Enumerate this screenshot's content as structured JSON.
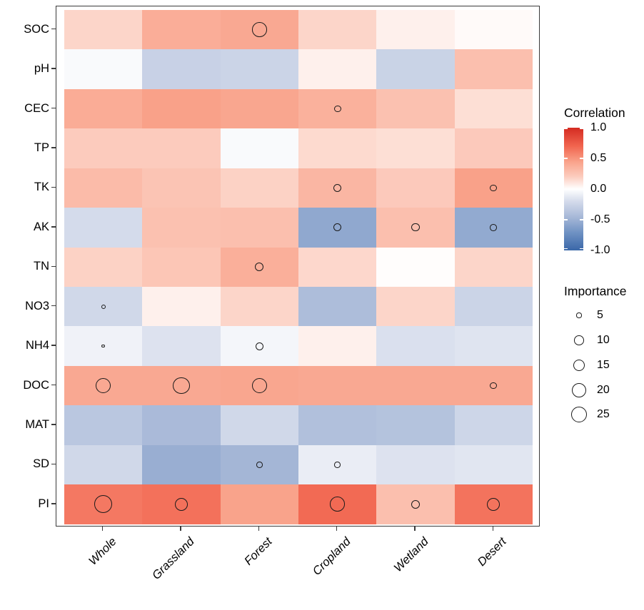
{
  "chart_data": {
    "type": "heatmap",
    "title": "",
    "rows": [
      "SOC",
      "pH",
      "CEC",
      "TP",
      "TK",
      "AK",
      "TN",
      "NO3",
      "NH4",
      "DOC",
      "MAT",
      "SD",
      "PI"
    ],
    "columns": [
      "Whole",
      "Grassland",
      "Forest",
      "Cropland",
      "Wetland",
      "Desert"
    ],
    "correlation": [
      [
        0.17,
        0.38,
        0.41,
        0.17,
        0.06,
        0.02
      ],
      [
        -0.03,
        -0.27,
        -0.25,
        0.06,
        -0.26,
        0.28
      ],
      [
        0.39,
        0.45,
        0.42,
        0.36,
        0.27,
        0.13
      ],
      [
        0.21,
        0.21,
        -0.03,
        0.15,
        0.13,
        0.22
      ],
      [
        0.3,
        0.25,
        0.18,
        0.33,
        0.22,
        0.45
      ],
      [
        -0.2,
        0.27,
        0.28,
        -0.56,
        0.28,
        -0.55
      ],
      [
        0.18,
        0.24,
        0.37,
        0.16,
        0.01,
        0.17
      ],
      [
        -0.22,
        0.06,
        0.17,
        -0.42,
        0.17,
        -0.25
      ],
      [
        -0.07,
        -0.16,
        -0.05,
        0.06,
        -0.17,
        -0.15
      ],
      [
        0.41,
        0.41,
        0.42,
        0.41,
        0.41,
        0.41
      ],
      [
        -0.35,
        -0.44,
        -0.22,
        -0.4,
        -0.38,
        -0.24
      ],
      [
        -0.22,
        -0.52,
        -0.47,
        -0.1,
        -0.16,
        -0.14
      ],
      [
        0.62,
        0.65,
        0.44,
        0.68,
        0.28,
        0.64
      ]
    ],
    "importance": [
      [
        null,
        null,
        20,
        null,
        null,
        null
      ],
      [
        null,
        null,
        null,
        null,
        null,
        null
      ],
      [
        null,
        null,
        null,
        7,
        null,
        null
      ],
      [
        null,
        null,
        null,
        null,
        null,
        null
      ],
      [
        null,
        null,
        null,
        8,
        null,
        7
      ],
      [
        null,
        null,
        null,
        8,
        8,
        7
      ],
      [
        null,
        null,
        9,
        null,
        null,
        null
      ],
      [
        4,
        null,
        null,
        null,
        null,
        null
      ],
      [
        2,
        null,
        8,
        null,
        null,
        null
      ],
      [
        21,
        26,
        21,
        null,
        null,
        7
      ],
      [
        null,
        null,
        null,
        null,
        null,
        null
      ],
      [
        null,
        null,
        6,
        6,
        null,
        null
      ],
      [
        29,
        17,
        null,
        20,
        9,
        17
      ]
    ],
    "legend_correlation": {
      "title": "Correlation",
      "tick_labels": [
        "1.0",
        "0.5",
        "0.0",
        "-0.5",
        "-1.0"
      ],
      "tick_values": [
        1.0,
        0.5,
        0.0,
        -0.5,
        -1.0
      ],
      "range": [
        -1.0,
        1.0
      ]
    },
    "legend_importance": {
      "title": "Importance",
      "sizes": [
        5,
        10,
        15,
        20,
        25
      ],
      "size_labels": [
        "5",
        "10",
        "15",
        "20",
        "25"
      ]
    },
    "color_scale": {
      "stops": [
        [
          -1.0,
          "#3A67A8"
        ],
        [
          -0.7,
          "#7193C4"
        ],
        [
          -0.45,
          "#A8B9D8"
        ],
        [
          -0.2,
          "#D4DBEB"
        ],
        [
          0.0,
          "#FFFFFF"
        ],
        [
          0.2,
          "#FCCDBF"
        ],
        [
          0.45,
          "#F9A189"
        ],
        [
          0.7,
          "#F1654F"
        ],
        [
          1.0,
          "#D42B21"
        ]
      ]
    },
    "size_scale": {
      "anchors": [
        [
          0,
          0
        ],
        [
          2,
          2.2
        ],
        [
          5,
          3.6
        ],
        [
          10,
          6.8
        ],
        [
          15,
          8.4
        ],
        [
          20,
          10.3
        ],
        [
          25,
          11.2
        ]
      ],
      "extra_slope": 0.35
    },
    "axis": {
      "grid": false,
      "x_label": "",
      "y_label": ""
    }
  }
}
